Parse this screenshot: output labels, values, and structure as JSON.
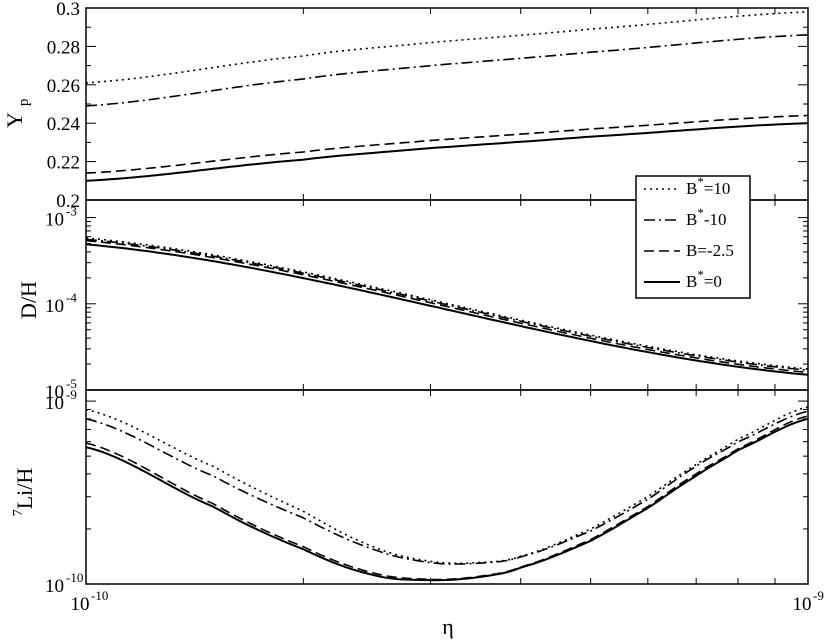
{
  "chart_data": [
    {
      "type": "line",
      "ylabel": "Y",
      "ylabel_sub": "p",
      "xscale": "log",
      "xlim": [
        1e-10,
        1e-09
      ],
      "ylim": [
        0.2,
        0.3
      ],
      "yticks": [
        "0.2",
        "0.22",
        "0.24",
        "0.26",
        "0.28",
        "0.3"
      ],
      "x": [
        1e-10,
        2e-10,
        3e-10,
        5e-10,
        1e-09
      ],
      "series": [
        {
          "name": "B*=10",
          "style": "dotted",
          "values": [
            0.261,
            0.275,
            0.282,
            0.289,
            0.298
          ]
        },
        {
          "name": "B*=-10",
          "style": "dashdot",
          "values": [
            0.249,
            0.263,
            0.27,
            0.277,
            0.286
          ]
        },
        {
          "name": "B=-2.5",
          "style": "dashed",
          "values": [
            0.214,
            0.225,
            0.231,
            0.237,
            0.244
          ]
        },
        {
          "name": "B*=0",
          "style": "solid",
          "values": [
            0.21,
            0.221,
            0.227,
            0.233,
            0.24
          ]
        }
      ]
    },
    {
      "type": "line",
      "ylabel": "D/H",
      "xscale": "log",
      "yscale": "log",
      "xlim": [
        1e-10,
        1e-09
      ],
      "ylim": [
        1e-05,
        0.0016
      ],
      "yticks": [
        {
          "base": "10",
          "exp": "-5"
        },
        {
          "base": "10",
          "exp": "-4"
        },
        {
          "base": "10",
          "exp": "-3"
        }
      ],
      "x": [
        1e-10,
        1e-09
      ],
      "series": [
        {
          "name": "B*=10",
          "style": "dotted",
          "values": [
            0.00058,
            1.75e-05
          ]
        },
        {
          "name": "B*=-10",
          "style": "dashdot",
          "values": [
            0.00056,
            1.7e-05
          ]
        },
        {
          "name": "B=-2.5",
          "style": "dashed",
          "values": [
            0.00054,
            1.6e-05
          ]
        },
        {
          "name": "B*=0",
          "style": "solid",
          "values": [
            0.00049,
            1.5e-05
          ]
        }
      ]
    },
    {
      "type": "line",
      "ylabel": "Li/H",
      "ylabel_sup": "7",
      "xlabel": "η",
      "xscale": "log",
      "yscale": "log",
      "xlim": [
        1e-10,
        1e-09
      ],
      "ylim": [
        1e-10,
        1.15e-09
      ],
      "yticks": [
        {
          "base": "10",
          "exp": "-10"
        },
        {
          "base": "10",
          "exp": "-9"
        }
      ],
      "xticks": [
        {
          "base": "10",
          "exp": "-10"
        },
        {
          "base": "10",
          "exp": "-9"
        }
      ],
      "x": [
        1e-10,
        1.5e-10,
        2e-10,
        2.5e-10,
        3e-10,
        3.5e-10,
        4e-10,
        5e-10,
        6e-10,
        7e-10,
        8e-10,
        1e-09
      ],
      "series": [
        {
          "name": "B*=10",
          "style": "dotted",
          "values": [
            9e-10,
            4.4e-10,
            2.5e-10,
            1.6e-10,
            1.33e-10,
            1.31e-10,
            1.42e-10,
            2e-10,
            3e-10,
            4.5e-10,
            6.2e-10,
            9.3e-10
          ]
        },
        {
          "name": "B*=-10",
          "style": "dashdot",
          "values": [
            8e-10,
            3.9e-10,
            2.3e-10,
            1.55e-10,
            1.31e-10,
            1.3e-10,
            1.41e-10,
            1.95e-10,
            2.9e-10,
            4.4e-10,
            6e-10,
            8.8e-10
          ]
        },
        {
          "name": "B=-2.5",
          "style": "dashed",
          "values": [
            5.9e-10,
            2.75e-10,
            1.6e-10,
            1.15e-10,
            1.06e-10,
            1.1e-10,
            1.24e-10,
            1.75e-10,
            2.65e-10,
            4e-10,
            5.5e-10,
            8.3e-10
          ]
        },
        {
          "name": "B*=0",
          "style": "solid",
          "values": [
            5.6e-10,
            2.65e-10,
            1.55e-10,
            1.12e-10,
            1.05e-10,
            1.09e-10,
            1.23e-10,
            1.72e-10,
            2.6e-10,
            3.9e-10,
            5.4e-10,
            8e-10
          ]
        }
      ]
    }
  ],
  "legend": {
    "placement": "right, inside top-middle panels",
    "entries": [
      {
        "base": "B",
        "sup": "*",
        "tail": "=10",
        "style": "dotted"
      },
      {
        "base": "B",
        "sup": "*",
        "tail": "-10",
        "style": "dashdot"
      },
      {
        "base": "B=-2.5",
        "sup": "",
        "tail": "",
        "style": "dashed"
      },
      {
        "base": "B",
        "sup": "*",
        "tail": "=0",
        "style": "solid"
      }
    ]
  },
  "line_color": "#000000"
}
